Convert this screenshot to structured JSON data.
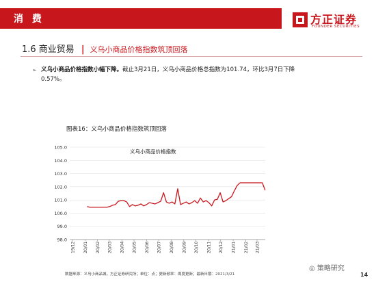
{
  "header": {
    "section_tag": "消 费"
  },
  "logo": {
    "name_cn": "方正证券",
    "name_en": "FOUNDER SECURITIES"
  },
  "section": {
    "number_title": "1.6 商业贸易",
    "subtitle": "义乌小商品价格指数筑顶回落"
  },
  "bullet": {
    "lead": "义乌小商品价格指数小幅下降。",
    "text": "截止3月21日，义乌小商品价格总指数为101.74，环比3月7日下降0.57%。"
  },
  "figure": {
    "caption": "图表16：义乌小商品价格指数筑顶回落"
  },
  "chart_data": {
    "type": "line",
    "title": "义乌小商品价格指数",
    "ylim": [
      98.0,
      105.0
    ],
    "y_ticks": [
      "98.0",
      "99.0",
      "100.0",
      "101.0",
      "102.0",
      "103.0",
      "104.0",
      "105.0"
    ],
    "x_ticks": [
      "19/12",
      "20/01",
      "20/02",
      "20/03",
      "20/04",
      "20/05",
      "20/06",
      "20/07",
      "20/08",
      "20/09",
      "20/10",
      "20/11",
      "20/12",
      "21/01",
      "21/02",
      "21/03"
    ],
    "series": [
      {
        "color": "#c8161d",
        "x": [
          "2020-01-06",
          "2020-01-13",
          "2020-01-20",
          "2020-02-03",
          "2020-02-10",
          "2020-02-17",
          "2020-02-24",
          "2020-03-02",
          "2020-03-09",
          "2020-03-16",
          "2020-03-23",
          "2020-03-30",
          "2020-04-06",
          "2020-04-13",
          "2020-04-20",
          "2020-04-27",
          "2020-05-04",
          "2020-05-11",
          "2020-05-18",
          "2020-05-25",
          "2020-06-01",
          "2020-06-08",
          "2020-06-15",
          "2020-06-22",
          "2020-06-29",
          "2020-07-06",
          "2020-07-13",
          "2020-07-20",
          "2020-07-27",
          "2020-08-03",
          "2020-08-10",
          "2020-08-17",
          "2020-08-24",
          "2020-08-31",
          "2020-09-07",
          "2020-09-14",
          "2020-09-21",
          "2020-09-28",
          "2020-10-05",
          "2020-10-12",
          "2020-10-19",
          "2020-10-26",
          "2020-11-02",
          "2020-11-09",
          "2020-11-16",
          "2020-11-23",
          "2020-11-30",
          "2020-12-07",
          "2020-12-14",
          "2020-12-21",
          "2020-12-28",
          "2021-01-04",
          "2021-01-11",
          "2021-01-18",
          "2021-01-25",
          "2021-02-01",
          "2021-02-08",
          "2021-02-15",
          "2021-02-22",
          "2021-03-01",
          "2021-03-07",
          "2021-03-14",
          "2021-03-21"
        ],
        "values": [
          100.5,
          100.45,
          100.45,
          100.45,
          100.45,
          100.45,
          100.45,
          100.5,
          100.6,
          100.65,
          100.9,
          100.95,
          100.95,
          100.85,
          100.5,
          100.65,
          100.55,
          100.6,
          100.7,
          100.55,
          100.65,
          100.8,
          100.75,
          100.7,
          100.8,
          100.9,
          101.55,
          100.85,
          100.75,
          100.85,
          100.7,
          101.85,
          100.65,
          100.75,
          100.85,
          100.7,
          100.8,
          100.95,
          100.75,
          101.15,
          100.85,
          100.95,
          100.8,
          100.55,
          101.0,
          101.05,
          101.55,
          100.85,
          100.95,
          101.1,
          101.25,
          101.7,
          102.1,
          102.3,
          102.3,
          102.3,
          102.3,
          102.3,
          102.3,
          102.3,
          102.3,
          102.3,
          101.74
        ]
      }
    ]
  },
  "footer": {
    "note": "数据来源：义乌小商品城，方正证券研究所；单位：点；更新频率：周度更新；最新日期：2021/3/21"
  },
  "watermark": {
    "text": "策略研究"
  },
  "page": {
    "number": "14"
  }
}
